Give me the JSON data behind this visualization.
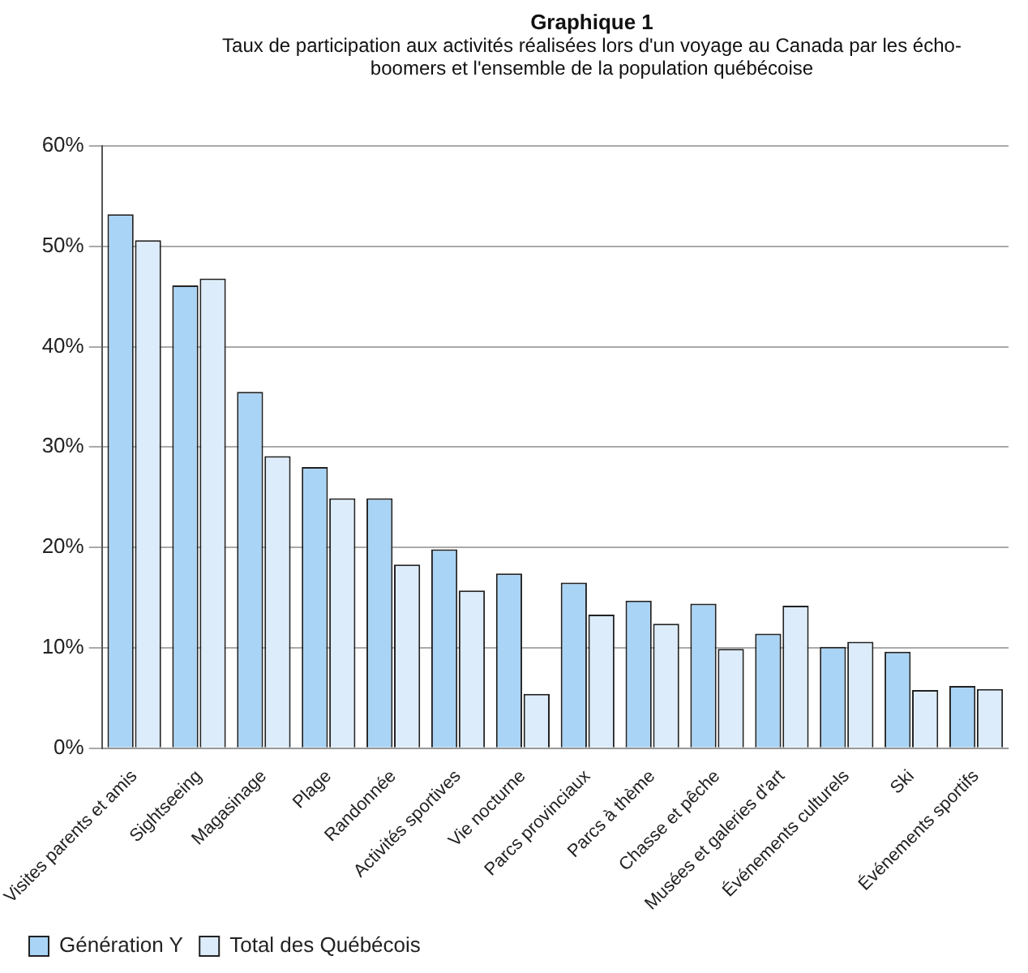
{
  "chart_data": {
    "type": "bar",
    "title": "Graphique 1",
    "subtitle": "Taux de participation aux activités réalisées lors d'un voyage au Canada par les écho-boomers et l'ensemble de la population québécoise",
    "categories": [
      "Visites parents et amis",
      "Sightseeing",
      "Magasinage",
      "Plage",
      "Randonnée",
      "Activités sportives",
      "Vie nocturne",
      "Parcs provinciaux",
      "Parcs à thème",
      "Chasse et pêche",
      "Musées et galeries d'art",
      "Événements culturels",
      "Ski",
      "Événements sportifs"
    ],
    "series": [
      {
        "name": "Génération Y",
        "color": "#a9d4f5",
        "values": [
          53.2,
          46.1,
          35.5,
          28,
          24.9,
          19.8,
          17.4,
          16.5,
          14.7,
          14.4,
          11.4,
          10.1,
          9.6,
          6.2
        ]
      },
      {
        "name": "Total des Québécois",
        "color": "#dcecfa",
        "values": [
          50.6,
          46.8,
          29.1,
          24.9,
          18.3,
          15.7,
          5.4,
          13.3,
          12.4,
          9.9,
          14.2,
          10.6,
          5.8,
          5.9
        ]
      }
    ],
    "ylim": [
      0,
      60
    ],
    "yticks": [
      {
        "value": 0,
        "label": "0%"
      },
      {
        "value": 10,
        "label": "10%"
      },
      {
        "value": 20,
        "label": "20%"
      },
      {
        "value": 30,
        "label": "30%"
      },
      {
        "value": 40,
        "label": "40%"
      },
      {
        "value": 50,
        "label": "50%"
      },
      {
        "value": 60,
        "label": "60%"
      }
    ],
    "grid": "y",
    "legend": "bottom"
  }
}
